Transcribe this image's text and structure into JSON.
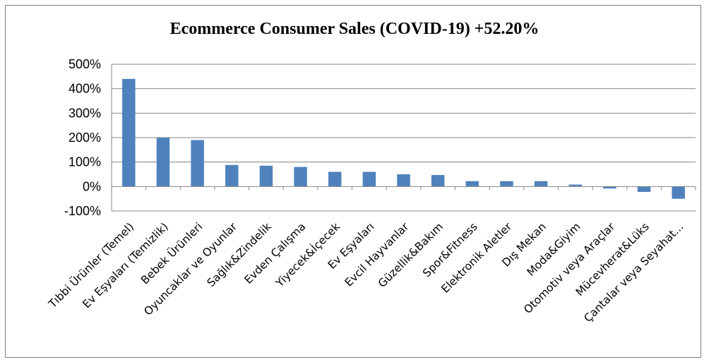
{
  "chart_data": {
    "type": "bar",
    "title": "Ecommerce Consumer Sales (COVID-19) +52.20%",
    "xlabel": "",
    "ylabel": "",
    "categories": [
      "Tıbbi Ürünler (Temel)",
      "Ev Eşyaları (Temizlik)",
      "Bebek Ürünleri",
      "Oyuncaklar ve Oyunlar",
      "Sağlık&Zindelik",
      "Evden Çalışma",
      "Yiyecek&İçecek",
      "Ev Eşyaları",
      "Evcil Hayvanlar",
      "Güzellik&Bakım",
      "Spor&Fitness",
      "Elektronik Aletler",
      "Dış Mekan",
      "Moda&Giyim",
      "Otomotiv veya Araçlar",
      "Mücevherat&Lüks",
      "Çantalar veya Seyahat..."
    ],
    "values": [
      440,
      200,
      190,
      88,
      85,
      80,
      60,
      60,
      50,
      47,
      22,
      22,
      22,
      8,
      -8,
      -22,
      -50
    ],
    "ylim": [
      -100,
      500
    ],
    "yticks": [
      -100,
      0,
      100,
      200,
      300,
      400,
      500
    ],
    "ytick_labels": [
      "-100%",
      "0%",
      "100%",
      "200%",
      "300%",
      "400%",
      "500%"
    ],
    "grid": true,
    "legend": "none",
    "colors": {
      "bar": "#4f81bd",
      "grid": "#868686",
      "axis": "#868686"
    }
  }
}
